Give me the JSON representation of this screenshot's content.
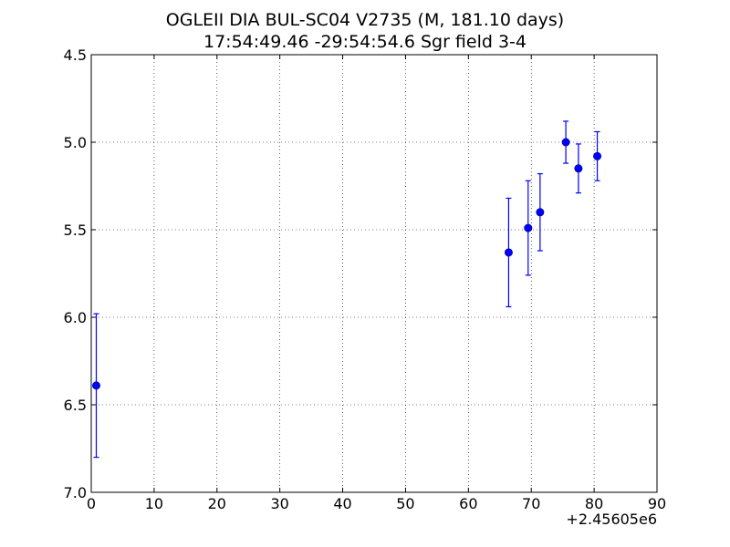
{
  "chart_data": {
    "type": "scatter",
    "title": "OGLEII DIA BUL-SC04 V2735  (M, 181.10 days)",
    "subtitle": "17:54:49.46 -29:54:54.6 Sgr field 3-4",
    "xlabel": "",
    "ylabel": "",
    "x_offset_label": "+2.45605e6",
    "xlim": [
      0,
      90
    ],
    "ylim": [
      7.0,
      4.5
    ],
    "y_inverted": true,
    "grid": true,
    "x_ticks": [
      0,
      10,
      20,
      30,
      40,
      50,
      60,
      70,
      80,
      90
    ],
    "x_tick_labels": [
      "0",
      "10",
      "20",
      "30",
      "40",
      "50",
      "60",
      "70",
      "80",
      "90"
    ],
    "y_ticks": [
      4.5,
      5.0,
      5.5,
      6.0,
      6.5,
      7.0
    ],
    "y_tick_labels": [
      "4.5",
      "5.0",
      "5.5",
      "6.0",
      "6.5",
      "7.0"
    ],
    "marker_color": "#0000ff",
    "series": [
      {
        "x": [
          0.8,
          66.4,
          69.5,
          71.4,
          75.5,
          77.5,
          80.5
        ],
        "y": [
          6.39,
          5.63,
          5.49,
          5.4,
          5.0,
          5.15,
          5.08
        ],
        "yerr": [
          0.41,
          0.31,
          0.27,
          0.22,
          0.12,
          0.14,
          0.14
        ]
      }
    ]
  }
}
